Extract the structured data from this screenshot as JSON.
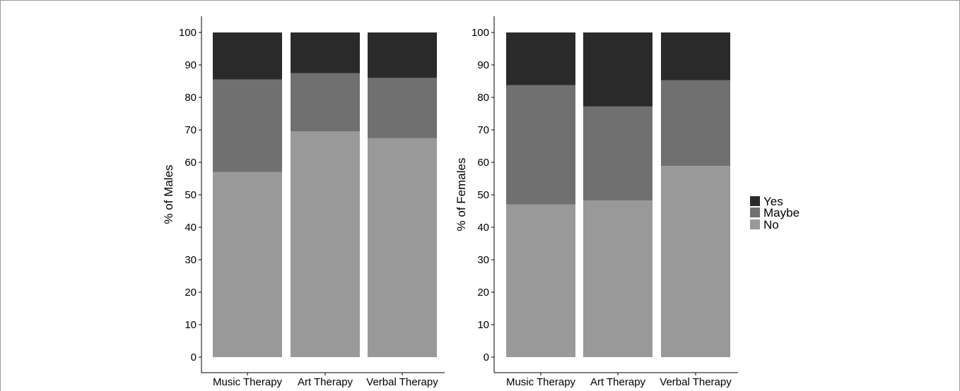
{
  "chart_data": [
    {
      "type": "bar",
      "stacked": true,
      "categories": [
        "Music Therapy",
        "Art Therapy",
        "Verbal Therapy"
      ],
      "ylabel": "% of Males",
      "xlabel": "",
      "ylim": [
        0,
        100
      ],
      "yticks": [
        0,
        10,
        20,
        30,
        40,
        50,
        60,
        70,
        80,
        90,
        100
      ],
      "series": [
        {
          "name": "No",
          "values": [
            57,
            69.5,
            67.5
          ]
        },
        {
          "name": "Maybe",
          "values": [
            28.5,
            18,
            18.5
          ]
        },
        {
          "name": "Yes",
          "values": [
            14.5,
            12.5,
            14
          ]
        }
      ],
      "grid": false
    },
    {
      "type": "bar",
      "stacked": true,
      "categories": [
        "Music Therapy",
        "Art Therapy",
        "Verbal Therapy"
      ],
      "ylabel": "% of Females",
      "xlabel": "",
      "ylim": [
        0,
        100
      ],
      "yticks": [
        0,
        10,
        20,
        30,
        40,
        50,
        60,
        70,
        80,
        90,
        100
      ],
      "series": [
        {
          "name": "No",
          "values": [
            47,
            48.2,
            58.9
          ]
        },
        {
          "name": "Maybe",
          "values": [
            36.8,
            29,
            26.4
          ]
        },
        {
          "name": "Yes",
          "values": [
            16.2,
            22.8,
            14.7
          ]
        }
      ],
      "grid": false
    }
  ],
  "legend": {
    "placement": "right",
    "items": [
      {
        "label": "Yes",
        "color": "#2a2a2a"
      },
      {
        "label": "Maybe",
        "color": "#707070"
      },
      {
        "label": "No",
        "color": "#999999"
      }
    ]
  },
  "colors": {
    "No": "#999999",
    "Maybe": "#707070",
    "Yes": "#2a2a2a",
    "axis": "#000000"
  }
}
